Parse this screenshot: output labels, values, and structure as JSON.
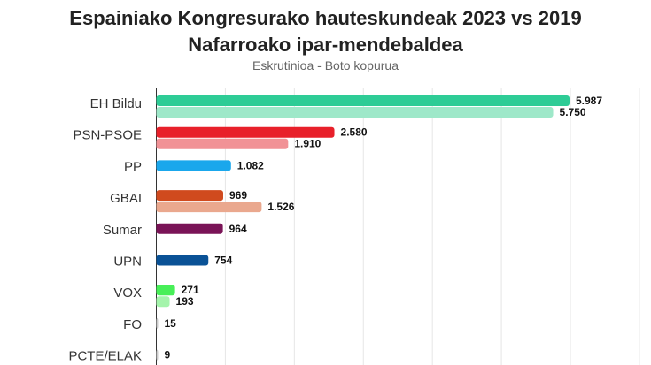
{
  "chart_data": {
    "type": "bar",
    "orientation": "horizontal",
    "title": "Espainiako Kongresurako hauteskundeak 2023 vs 2019",
    "subtitle": "Nafarroako ipar-mendebaldea",
    "caption": "Eskrutinioa - Boto kopurua",
    "xlim": [
      0,
      7000
    ],
    "grid": true,
    "grid_values": [
      1000,
      2000,
      3000,
      4000,
      5000,
      6000,
      7000
    ],
    "categories": [
      {
        "label": "EH Bildu",
        "value_2023": 5987,
        "label_2023": "5.987",
        "value_2019": 5750,
        "label_2019": "5.750",
        "color_2023": "#2ecc96",
        "color_2019": "#9ee8c9"
      },
      {
        "label": "PSN-PSOE",
        "value_2023": 2580,
        "label_2023": "2.580",
        "value_2019": 1910,
        "label_2019": "1.910",
        "color_2023": "#e8202a",
        "color_2019": "#f19296"
      },
      {
        "label": "PP",
        "value_2023": 1082,
        "label_2023": "1.082",
        "value_2019": null,
        "label_2019": null,
        "color_2023": "#1aa7ec",
        "color_2019": null
      },
      {
        "label": "GBAI",
        "value_2023": 969,
        "label_2023": "969",
        "value_2019": 1526,
        "label_2019": "1.526",
        "color_2023": "#d04a1e",
        "color_2019": "#eaa88e"
      },
      {
        "label": "Sumar",
        "value_2023": 964,
        "label_2023": "964",
        "value_2019": null,
        "label_2019": null,
        "color_2023": "#7a1457",
        "color_2019": null
      },
      {
        "label": "UPN",
        "value_2023": 754,
        "label_2023": "754",
        "value_2019": null,
        "label_2019": null,
        "color_2023": "#0a5296",
        "color_2019": null
      },
      {
        "label": "VOX",
        "value_2023": 271,
        "label_2023": "271",
        "value_2019": 193,
        "label_2019": "193",
        "color_2023": "#48ef58",
        "color_2019": "#a4f4ab"
      },
      {
        "label": "FO",
        "value_2023": 15,
        "label_2023": "15",
        "value_2019": null,
        "label_2019": null,
        "color_2023": "#cccccc",
        "color_2019": null
      },
      {
        "label": "PCTE/ELAK",
        "value_2023": 9,
        "label_2023": "9",
        "value_2019": null,
        "label_2019": null,
        "color_2023": "#cccccc",
        "color_2019": null
      }
    ]
  }
}
